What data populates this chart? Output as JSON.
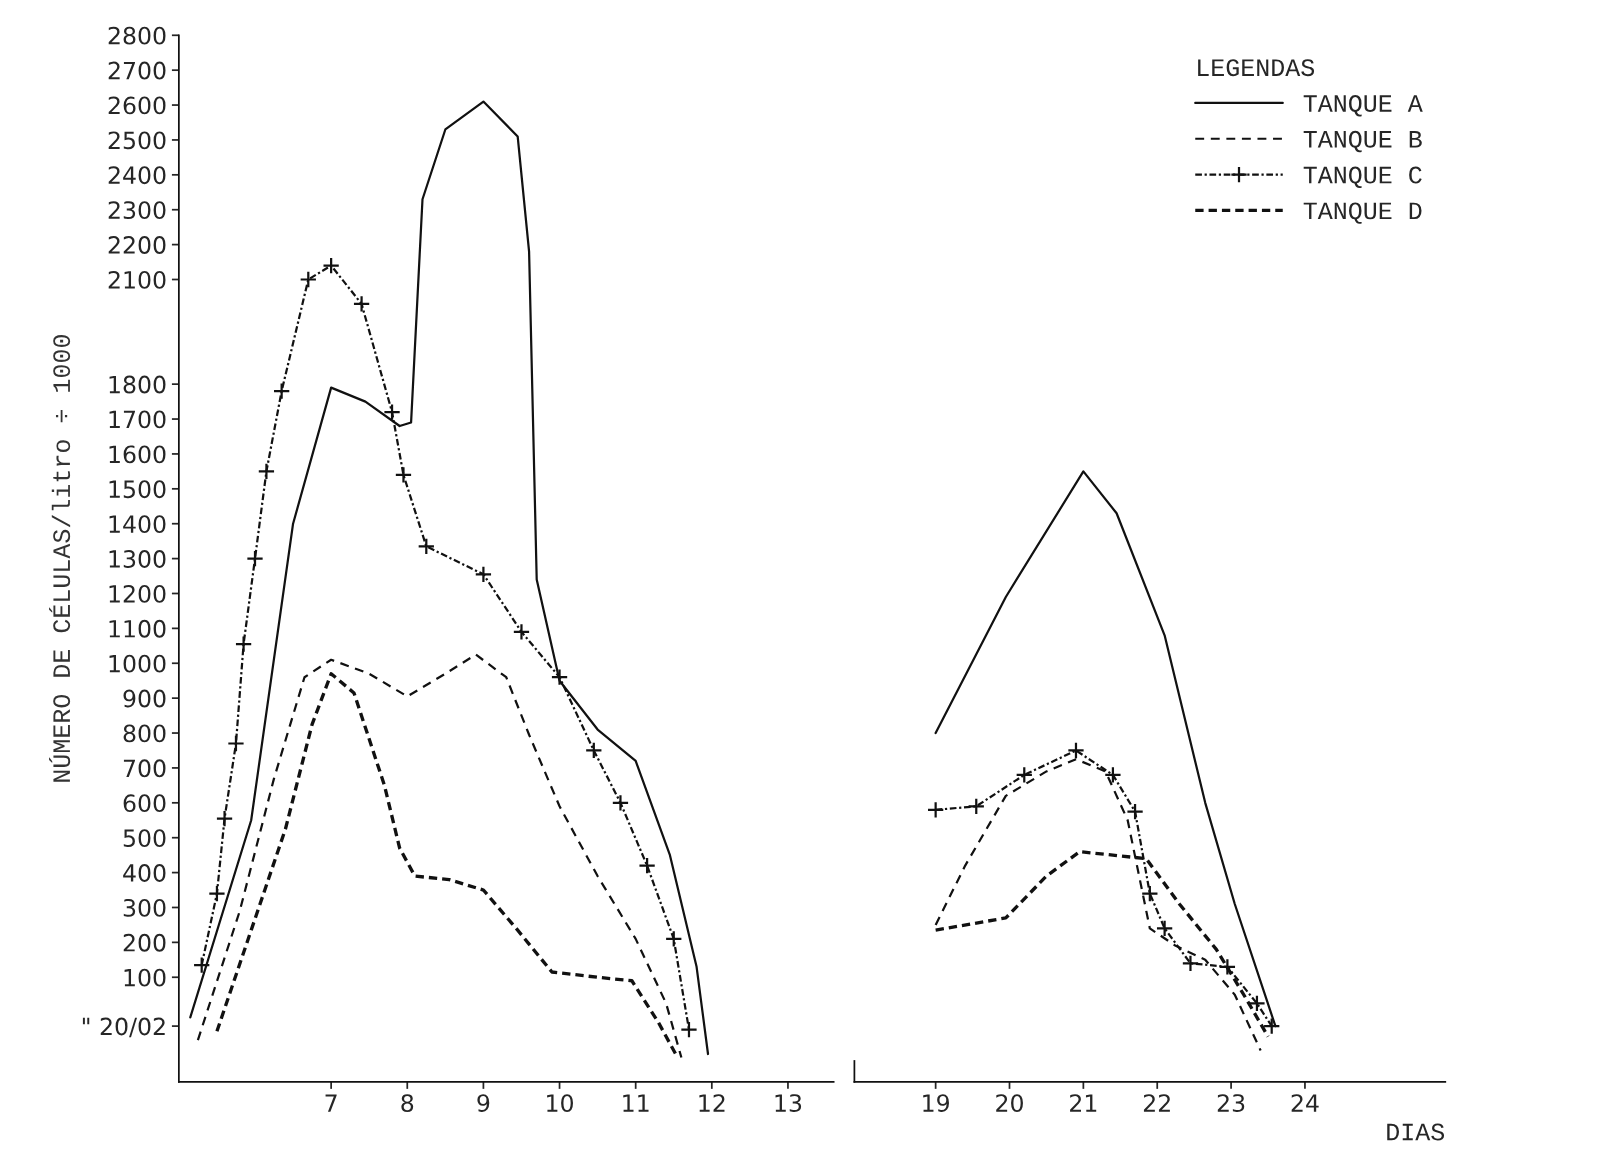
{
  "chart_data": [
    {
      "type": "line",
      "ylabel": "NÚMERO DE CÉLULAS/litro ÷ 1000",
      "xlim": [
        5.0,
        13.6
      ],
      "xticks": [
        7,
        8,
        9,
        10,
        11,
        12,
        13
      ],
      "ylim": [
        -200,
        2800
      ],
      "yticks": [
        {
          "value": -40,
          "label": "\" 20/02"
        },
        100,
        200,
        300,
        400,
        500,
        600,
        700,
        800,
        900,
        1000,
        1100,
        1200,
        1300,
        1400,
        1500,
        1600,
        1700,
        1800,
        2100,
        2200,
        2300,
        2400,
        2500,
        2600,
        2700,
        2800
      ],
      "grid": false,
      "series": [
        {
          "color": "#111111",
          "line_style": "solid",
          "x": [
            5.15,
            5.95,
            6.5,
            7,
            7.45,
            7.9,
            8.05,
            8.2,
            8.5,
            9,
            9.45,
            9.6,
            9.7,
            10,
            10.5,
            11,
            11.45,
            11.8,
            11.95
          ],
          "values": [
            -15,
            550,
            1400,
            1790,
            1750,
            1680,
            1690,
            2330,
            2530,
            2610,
            2510,
            2180,
            1240,
            950,
            810,
            720,
            450,
            130,
            -120
          ]
        },
        {
          "color": "#111111",
          "line_style": "dashed",
          "x": [
            5.25,
            5.8,
            6.25,
            6.65,
            7,
            7.5,
            8,
            8.5,
            8.9,
            9.3,
            9.6,
            10,
            10.5,
            11,
            11.4,
            11.6
          ],
          "values": [
            -80,
            290,
            670,
            960,
            1010,
            970,
            905,
            970,
            1025,
            960,
            795,
            590,
            390,
            210,
            25,
            -130
          ]
        },
        {
          "color": "#111111",
          "line_style": "dashed",
          "marker": "cross",
          "x": [
            5.3,
            5.5,
            5.6,
            5.75,
            5.85,
            6.0,
            6.15,
            6.35,
            6.7,
            7,
            7.4,
            7.8,
            7.95,
            8.25,
            9,
            9.5,
            10,
            10.45,
            10.8,
            11.15,
            11.5,
            11.7
          ],
          "values": [
            135,
            340,
            555,
            770,
            1055,
            1300,
            1550,
            1780,
            2100,
            2140,
            2030,
            1720,
            1540,
            1335,
            1255,
            1090,
            960,
            750,
            600,
            420,
            210,
            -50
          ]
        },
        {
          "color": "#111111",
          "line_style": "dashed",
          "x": [
            5.5,
            5.95,
            6.4,
            6.75,
            7,
            7.3,
            7.7,
            7.9,
            8.1,
            8.55,
            9,
            9.45,
            9.9,
            10.5,
            10.95,
            11.3,
            11.55
          ],
          "values": [
            -55,
            235,
            525,
            825,
            970,
            915,
            650,
            470,
            390,
            380,
            350,
            235,
            115,
            100,
            90,
            -30,
            -130
          ]
        }
      ]
    },
    {
      "type": "line",
      "xlabel": "DIAS",
      "legend_title": "LEGENDAS",
      "legend": "top right",
      "tick_labels": "x",
      "xlim": [
        17.9,
        25.9
      ],
      "xticks": [
        19,
        20,
        21,
        22,
        23,
        24
      ],
      "ylim": [
        -200,
        2800
      ],
      "yticks": [
        100,
        200,
        300,
        400,
        500,
        600,
        700,
        800,
        900,
        1000,
        1100,
        1200,
        1300,
        1400,
        1500,
        1600,
        1700,
        1800,
        2100,
        2200,
        2300,
        2400,
        2500,
        2600,
        2700,
        2800
      ],
      "grid": false,
      "series": [
        {
          "name": "TANQUE A",
          "color": "#111111",
          "line_style": "solid",
          "x": [
            19,
            19.95,
            21,
            21.45,
            22.1,
            22.65,
            23.05,
            23.6
          ],
          "values": [
            800,
            1190,
            1550,
            1430,
            1080,
            600,
            310,
            -40
          ]
        },
        {
          "name": "TANQUE B",
          "color": "#111111",
          "line_style": "dashed",
          "x": [
            19,
            19.4,
            19.95,
            20.5,
            20.9,
            21.3,
            21.6,
            21.9,
            22.25,
            22.65,
            23.05,
            23.4
          ],
          "values": [
            250,
            420,
            620,
            690,
            725,
            690,
            550,
            240,
            190,
            150,
            50,
            -110
          ]
        },
        {
          "name": "TANQUE C",
          "color": "#111111",
          "line_style": "dashed",
          "marker": "cross",
          "x": [
            19,
            19.55,
            20.2,
            20.9,
            21.4,
            21.7,
            21.9,
            22.1,
            22.45,
            22.95,
            23.35,
            23.55
          ],
          "values": [
            580,
            590,
            680,
            750,
            680,
            575,
            340,
            240,
            140,
            130,
            25,
            -40
          ]
        },
        {
          "name": "TANQUE D",
          "color": "#111111",
          "line_style": "dashed",
          "x": [
            19,
            19.95,
            20.5,
            20.95,
            21.85,
            22.3,
            22.8,
            23.2,
            23.5
          ],
          "values": [
            235,
            270,
            390,
            460,
            440,
            310,
            180,
            40,
            -70
          ]
        }
      ]
    }
  ]
}
